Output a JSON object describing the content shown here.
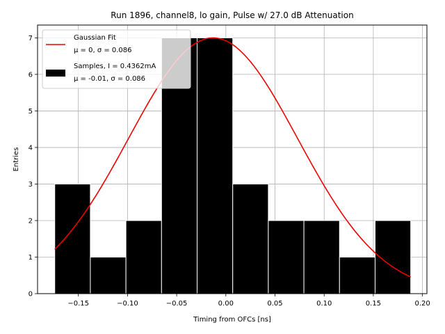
{
  "chart_data": {
    "type": "bar",
    "title": "Run 1896, channel8, lo gain, Pulse w/ 27.0 dB Attenuation",
    "xlabel": "Timing from OFCs [ns]",
    "ylabel": "Entries",
    "xlim": [
      -0.1915,
      0.2045
    ],
    "ylim": [
      0,
      7.35
    ],
    "x_ticks": [
      -0.15,
      -0.1,
      -0.05,
      0.0,
      0.05,
      0.1,
      0.15,
      0.2
    ],
    "x_tick_labels": [
      "−0.15",
      "−0.10",
      "−0.05",
      "0.00",
      "0.05",
      "0.10",
      "0.15",
      "0.20"
    ],
    "y_ticks": [
      0,
      1,
      2,
      3,
      4,
      5,
      6,
      7
    ],
    "y_tick_labels": [
      "0",
      "1",
      "2",
      "3",
      "4",
      "5",
      "6",
      "7"
    ],
    "grid": true,
    "legend_position": "top-left",
    "histogram": {
      "name": "Samples, I = 0.4362mA",
      "stats": "μ = -0.01, σ = 0.086",
      "color": "#000000",
      "edge_color": "#ffffff",
      "bin_edges": [
        -0.174,
        -0.1378,
        -0.1016,
        -0.0654,
        -0.0292,
        0.007,
        0.0432,
        0.0794,
        0.1156,
        0.1518,
        0.188
      ],
      "counts": [
        3,
        1,
        2,
        7,
        7,
        3,
        2,
        2,
        1,
        2
      ]
    },
    "fit": {
      "name": "Gaussian Fit",
      "stats": "μ = 0, σ = 0.086",
      "color": "#ee0000",
      "amplitude": 7.0,
      "mean": -0.013,
      "sigma": 0.086,
      "x_range": [
        -0.174,
        0.188
      ]
    }
  }
}
